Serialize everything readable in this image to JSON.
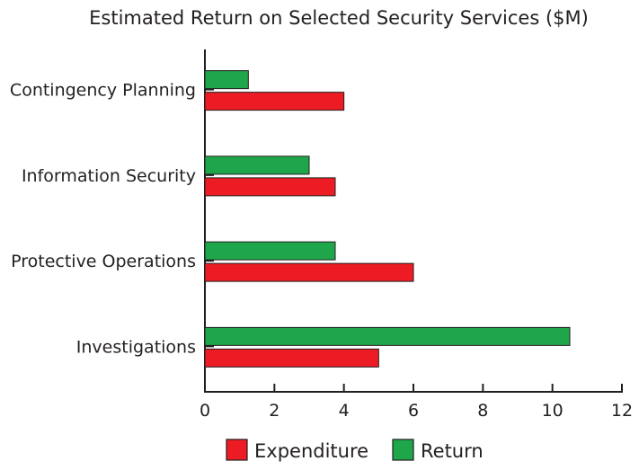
{
  "chart_data": {
    "type": "bar",
    "orientation": "horizontal",
    "title": "Estimated Return on Selected Security Services ($M)",
    "xlabel": "",
    "ylabel": "",
    "categories": [
      "Contingency Planning",
      "Information Security",
      "Protective Operations",
      "Investigations"
    ],
    "series": [
      {
        "name": "Expenditure",
        "color": "#ed1c24",
        "values": [
          4,
          3.75,
          6,
          5
        ]
      },
      {
        "name": "Return",
        "color": "#1fa64a",
        "values": [
          1.25,
          3,
          3.75,
          10.5
        ]
      }
    ],
    "xlim": [
      0,
      12
    ],
    "xticks": [
      "0",
      "2",
      "4",
      "6",
      "8",
      "10",
      "12"
    ],
    "grid": false,
    "legend_position": "bottom"
  }
}
